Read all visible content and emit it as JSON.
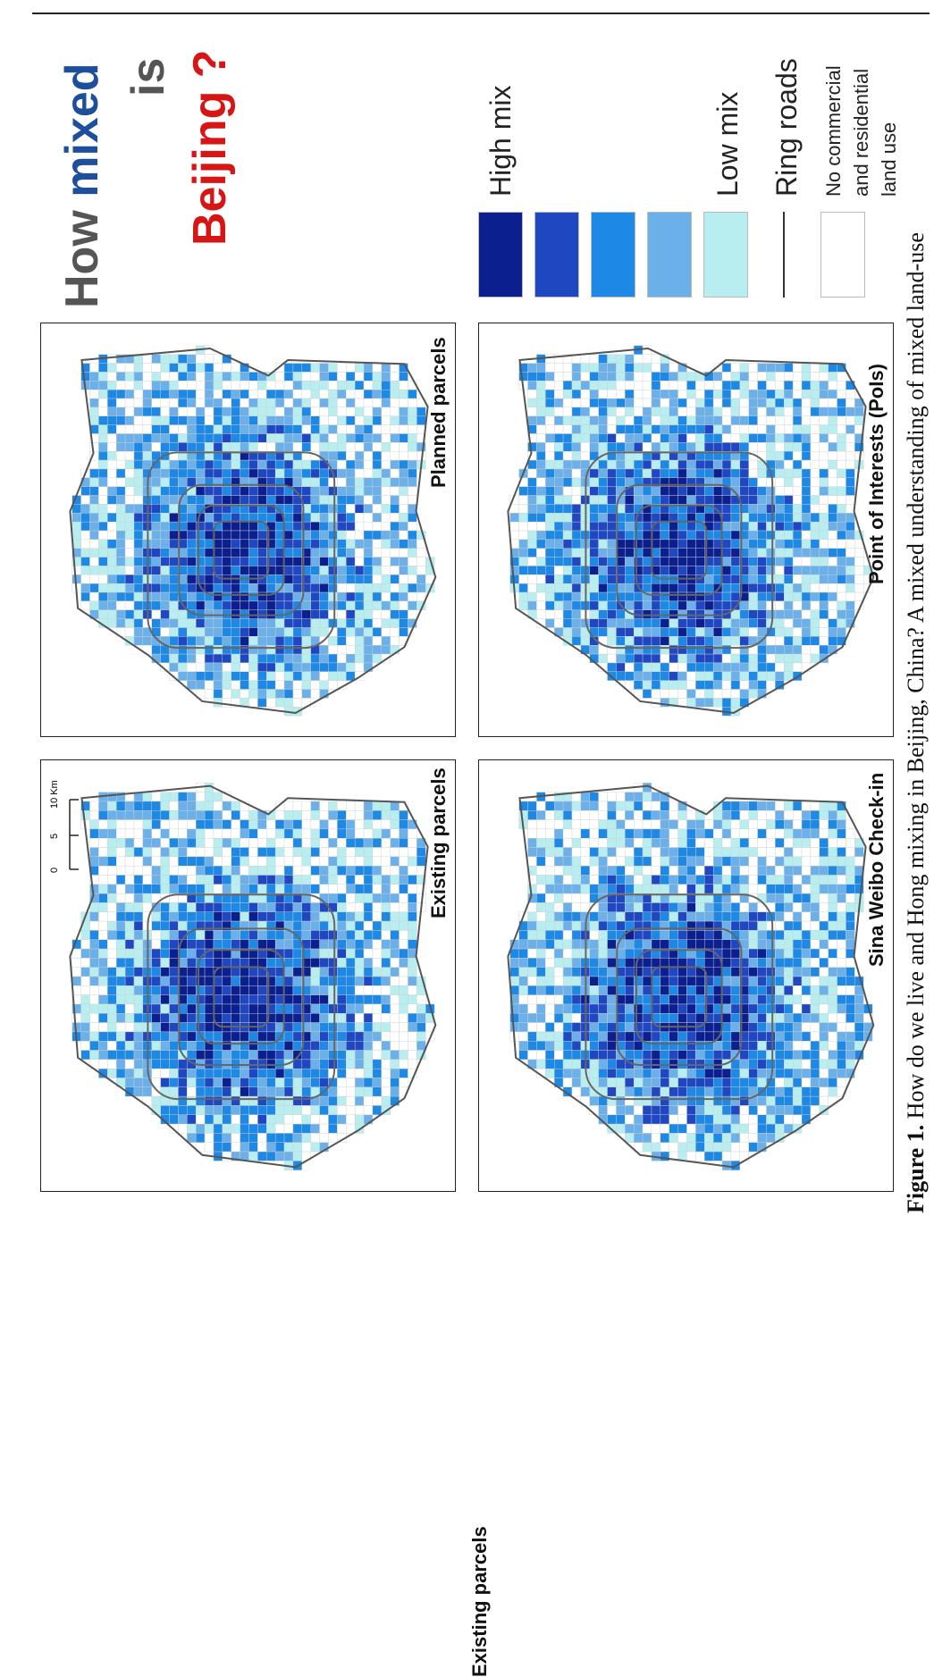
{
  "title": {
    "how": "How",
    "mixed": "mixed",
    "is": "is",
    "beijing": "Beijing ?"
  },
  "panels": [
    {
      "id": "existing",
      "label": "Existing parcels",
      "seed": 11
    },
    {
      "id": "planned",
      "label": "Planned parcels",
      "seed": 23
    },
    {
      "id": "weibo",
      "label": "Sina Weibo Check-in",
      "seed": 37
    },
    {
      "id": "pois",
      "label": "Point of Interests (PoIs)",
      "seed": 51
    }
  ],
  "scale_bar": {
    "ticks": [
      "0",
      "5",
      "10 Km"
    ]
  },
  "legend": {
    "items": [
      {
        "label": "High mix",
        "color": "#0b1f8f"
      },
      {
        "label": "",
        "color": "#1f47c2"
      },
      {
        "label": "",
        "color": "#1e88e5"
      },
      {
        "label": "",
        "color": "#6cb0ea"
      },
      {
        "label": "Low mix",
        "color": "#b8eef0"
      }
    ],
    "ring_roads": "Ring roads",
    "no_use": "No commercial\nand residential\nland use"
  },
  "caption": {
    "bold": "Figure 1.",
    "text": " How do we live and Hong mixing in Beijing, China? A mixed understanding of mixed land-use"
  }
}
